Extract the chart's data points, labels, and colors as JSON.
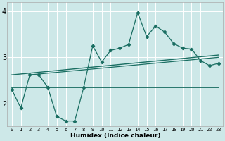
{
  "xlabel": "Humidex (Indice chaleur)",
  "ylabel": "",
  "xlim": [
    -0.5,
    23.5
  ],
  "ylim": [
    1.5,
    4.2
  ],
  "yticks": [
    2,
    3,
    4
  ],
  "xticks": [
    0,
    1,
    2,
    3,
    4,
    5,
    6,
    7,
    8,
    9,
    10,
    11,
    12,
    13,
    14,
    15,
    16,
    17,
    18,
    19,
    20,
    21,
    22,
    23
  ],
  "bg_color": "#cde8e8",
  "line_color": "#1a6e62",
  "grid_color": "#ffffff",
  "curve1_x": [
    0,
    1,
    2,
    3,
    4,
    5,
    6,
    7,
    8,
    9,
    10,
    11,
    12,
    13,
    14,
    15,
    16,
    17,
    18,
    19,
    20,
    21,
    22,
    23
  ],
  "curve1_y": [
    2.3,
    1.9,
    2.62,
    2.62,
    2.35,
    1.72,
    1.62,
    1.62,
    2.35,
    3.25,
    2.9,
    3.15,
    3.2,
    3.28,
    3.97,
    3.45,
    3.68,
    3.55,
    3.3,
    3.2,
    3.18,
    2.93,
    2.82,
    2.87
  ],
  "curve2_x": [
    0,
    23
  ],
  "curve2_y": [
    2.35,
    2.35
  ],
  "curve3_x": [
    0,
    23
  ],
  "curve3_y": [
    2.62,
    3.05
  ],
  "curve4_x": [
    2,
    23
  ],
  "curve4_y": [
    2.62,
    3.0
  ]
}
